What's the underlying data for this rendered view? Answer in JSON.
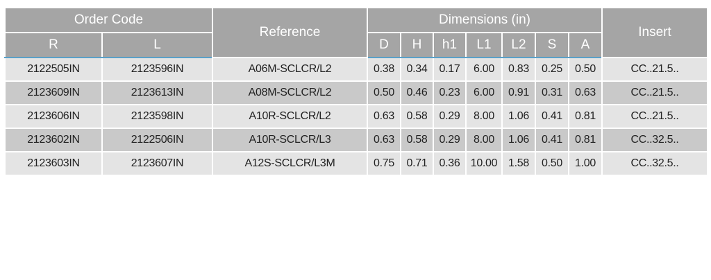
{
  "table": {
    "header": {
      "order_code": "Order Code",
      "reference": "Reference",
      "dimensions": "Dimensions (in)",
      "insert": "Insert",
      "sub": [
        "R",
        "L",
        "D",
        "H",
        "h1",
        "L1",
        "L2",
        "S",
        "A"
      ]
    },
    "rows": [
      [
        "2122505IN",
        "2123596IN",
        "A06M-SCLCR/L2",
        "0.38",
        "0.34",
        "0.17",
        "6.00",
        "0.83",
        "0.25",
        "0.50",
        "CC..21.5.."
      ],
      [
        "2123609IN",
        "2123613IN",
        "A08M-SCLCR/L2",
        "0.50",
        "0.46",
        "0.23",
        "6.00",
        "0.91",
        "0.31",
        "0.63",
        "CC..21.5.."
      ],
      [
        "2123606IN",
        "2123598IN",
        "A10R-SCLCR/L2",
        "0.63",
        "0.58",
        "0.29",
        "8.00",
        "1.06",
        "0.41",
        "0.81",
        "CC..21.5.."
      ],
      [
        "2123602IN",
        "2122506IN",
        "A10R-SCLCR/L3",
        "0.63",
        "0.58",
        "0.29",
        "8.00",
        "1.06",
        "0.41",
        "0.81",
        "CC..32.5.."
      ],
      [
        "2123603IN",
        "2123607IN",
        "A12S-SCLCR/L3M",
        "0.75",
        "0.71",
        "0.36",
        "10.00",
        "1.58",
        "0.50",
        "1.00",
        "CC..32.5.."
      ]
    ]
  }
}
